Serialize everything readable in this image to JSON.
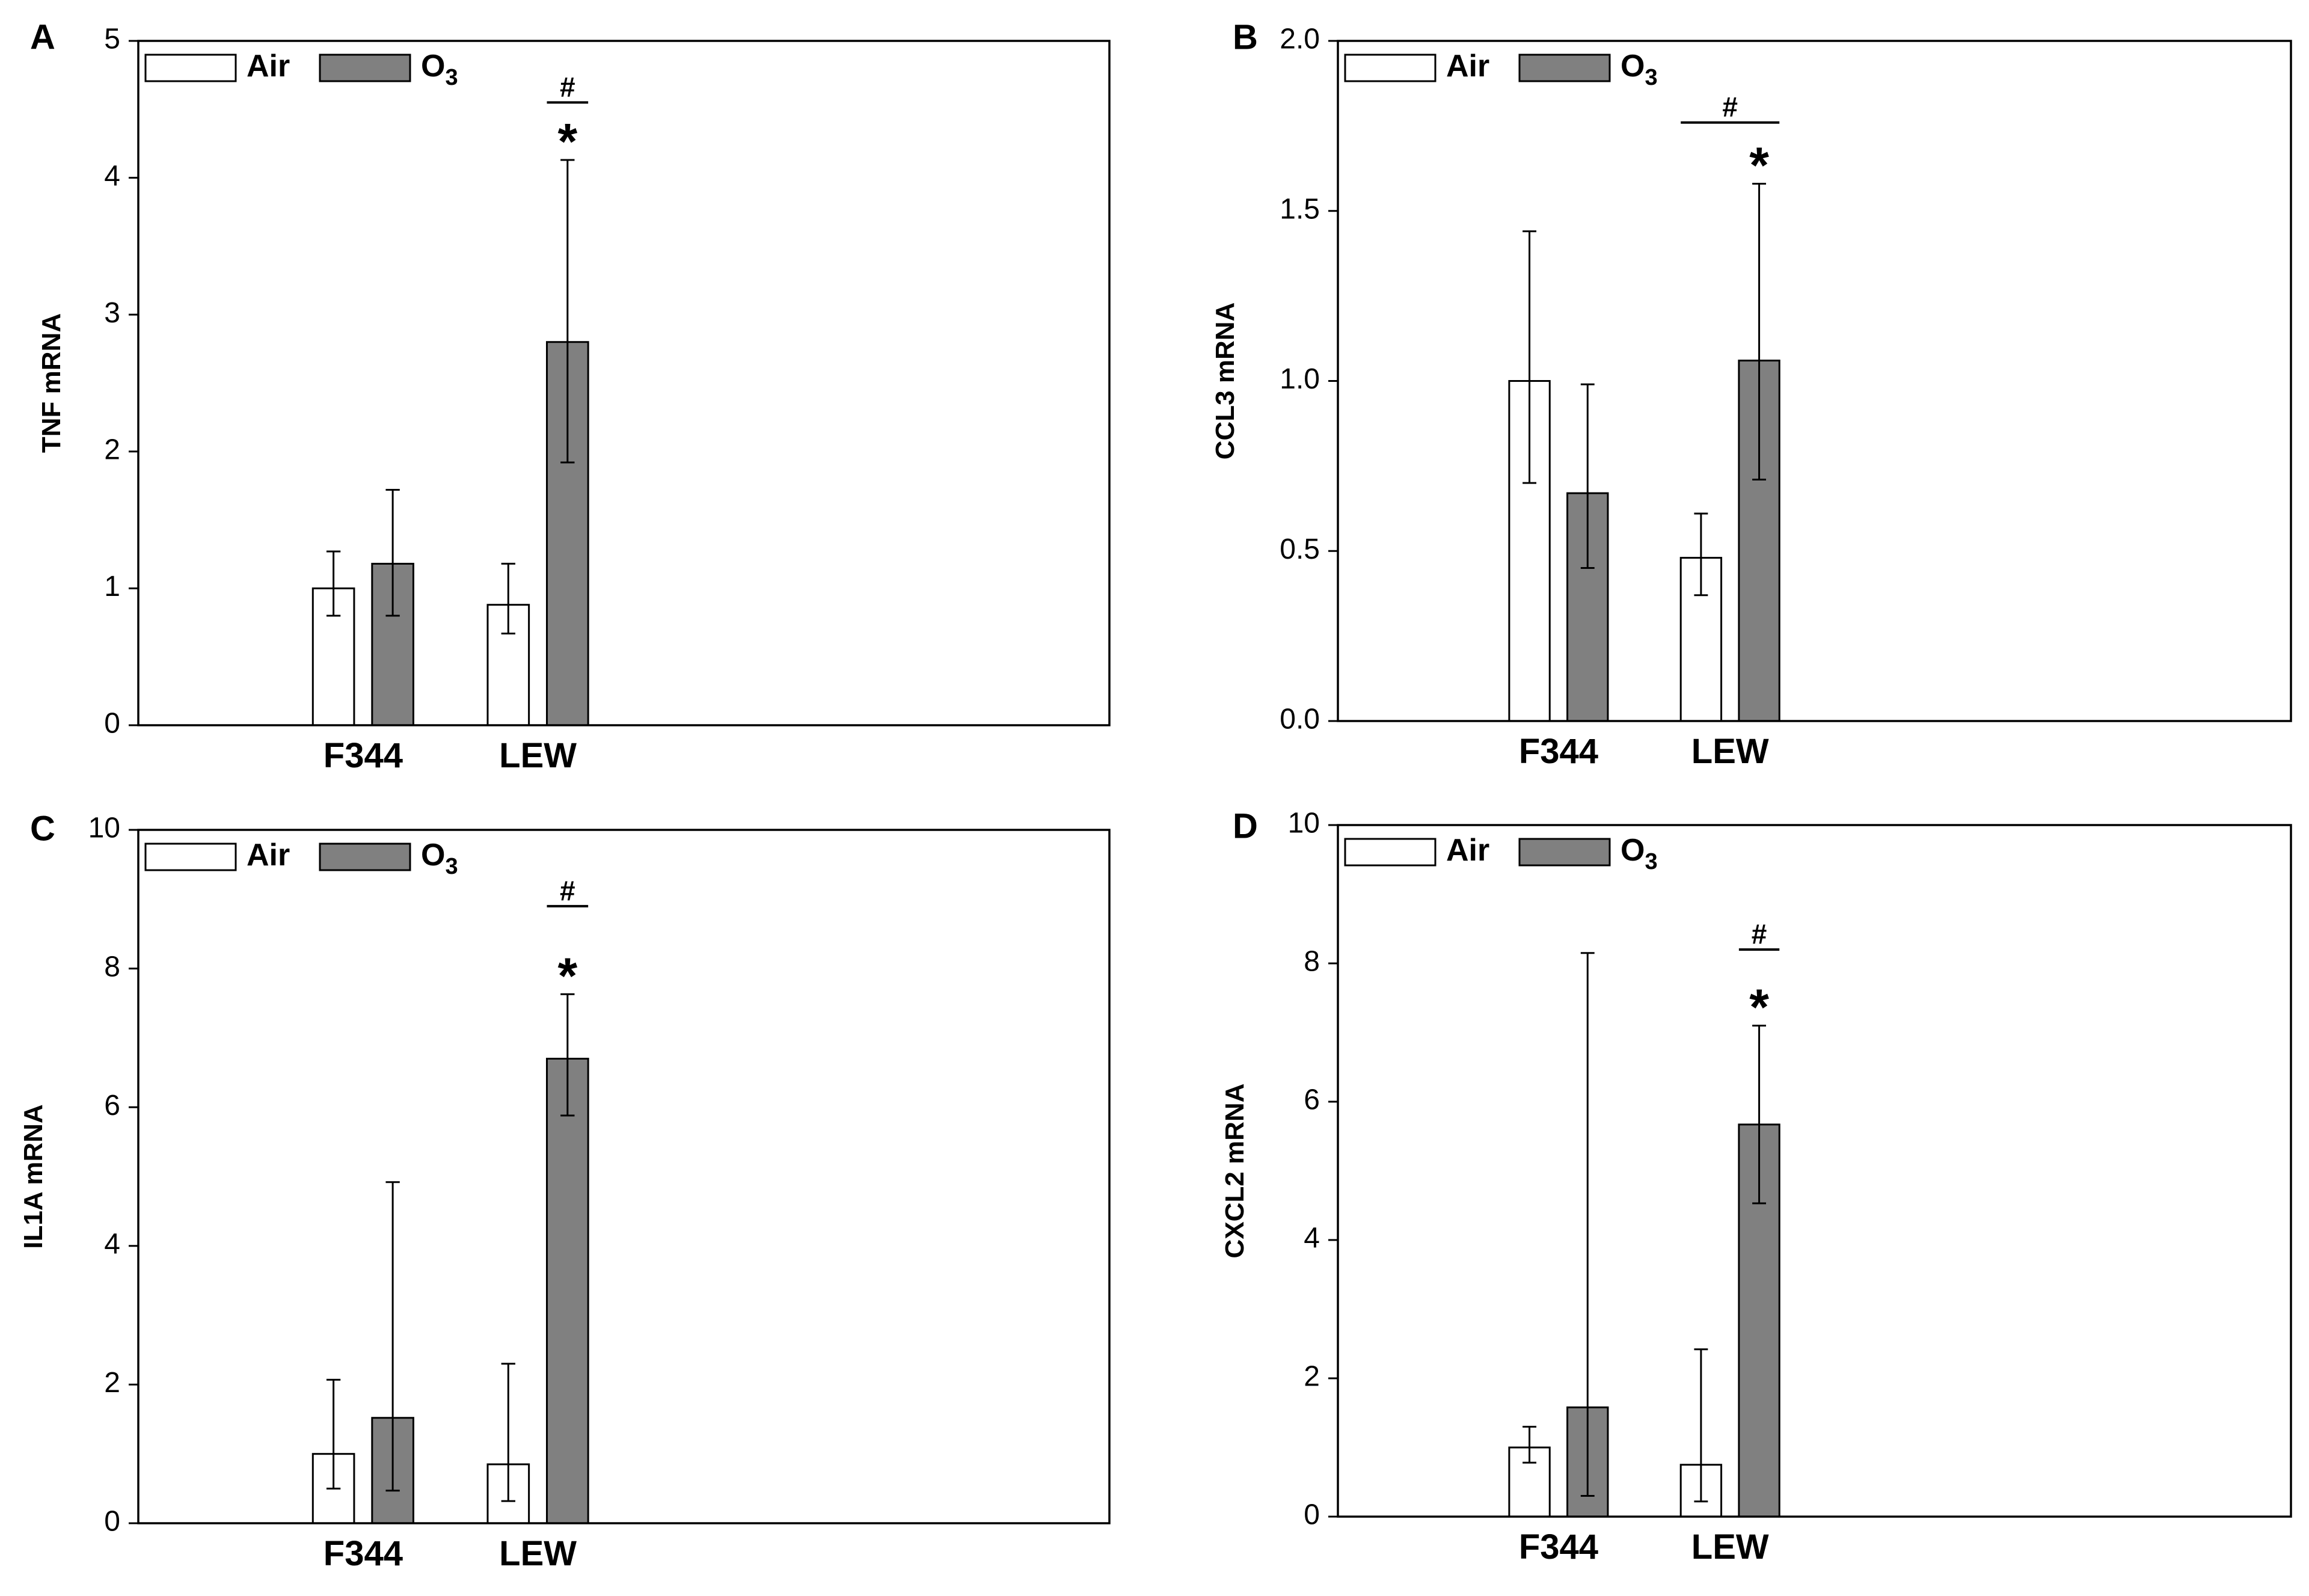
{
  "chart_data": [
    {
      "panel": "A",
      "type": "bar",
      "ylabel": "TNF mRNA",
      "ylim": [
        0,
        5
      ],
      "yticks": [
        "0",
        "1",
        "2",
        "3",
        "4",
        "5"
      ],
      "categories": [
        "F344",
        "LEW"
      ],
      "legend": {
        "position": "top-left",
        "entries": [
          {
            "label": "Air",
            "subscript": "",
            "color": "#ffffff"
          },
          {
            "label": "O",
            "subscript": "3",
            "color": "#808080"
          }
        ]
      },
      "series": [
        {
          "name": "Air",
          "color": "#ffffff",
          "values": [
            1.0,
            0.88
          ],
          "err_low": [
            0.8,
            0.67
          ],
          "err_high": [
            1.27,
            1.18
          ]
        },
        {
          "name": "O3",
          "color": "#808080",
          "values": [
            1.18,
            2.8
          ],
          "err_low": [
            0.8,
            1.92
          ],
          "err_high": [
            1.72,
            4.13
          ]
        }
      ],
      "annotations": [
        {
          "text": "#",
          "bracket": [
            [
              1,
              1
            ],
            [
              1,
              1
            ]
          ],
          "level": 4.55
        },
        {
          "text": "*",
          "category": 1,
          "series": 1,
          "level": 4.13
        }
      ]
    },
    {
      "panel": "B",
      "type": "bar",
      "ylabel": "CCL3 mRNA",
      "ylim": [
        0,
        2
      ],
      "yticks": [
        "0.0",
        "0.5",
        "1.0",
        "1.5",
        "2.0"
      ],
      "categories": [
        "F344",
        "LEW"
      ],
      "legend": {
        "position": "top-left",
        "entries": [
          {
            "label": "Air",
            "subscript": "",
            "color": "#ffffff"
          },
          {
            "label": "O",
            "subscript": "3",
            "color": "#808080"
          }
        ]
      },
      "series": [
        {
          "name": "Air",
          "color": "#ffffff",
          "values": [
            1.0,
            0.48
          ],
          "err_low": [
            0.7,
            0.37
          ],
          "err_high": [
            1.44,
            0.61
          ]
        },
        {
          "name": "O3",
          "color": "#808080",
          "values": [
            0.67,
            1.06
          ],
          "err_low": [
            0.45,
            0.71
          ],
          "err_high": [
            0.99,
            1.58
          ]
        }
      ],
      "annotations": [
        {
          "text": "#",
          "bracket": [
            [
              1,
              0
            ],
            [
              1,
              1
            ]
          ],
          "level": 1.76
        },
        {
          "text": "*",
          "category": 1,
          "series": 1,
          "level": 1.58
        }
      ]
    },
    {
      "panel": "C",
      "type": "bar",
      "ylabel": "IL1A mRNA",
      "ylim": [
        0,
        10
      ],
      "yticks": [
        "0",
        "2",
        "4",
        "6",
        "8",
        "10"
      ],
      "categories": [
        "F344",
        "LEW"
      ],
      "legend": {
        "position": "top-left",
        "entries": [
          {
            "label": "Air",
            "subscript": "",
            "color": "#ffffff"
          },
          {
            "label": "O",
            "subscript": "3",
            "color": "#808080"
          }
        ]
      },
      "series": [
        {
          "name": "Air",
          "color": "#ffffff",
          "values": [
            1.0,
            0.85
          ],
          "err_low": [
            0.5,
            0.32
          ],
          "err_high": [
            2.07,
            2.3
          ]
        },
        {
          "name": "O3",
          "color": "#808080",
          "values": [
            1.52,
            6.7
          ],
          "err_low": [
            0.47,
            5.88
          ],
          "err_high": [
            4.92,
            7.63
          ]
        }
      ],
      "annotations": [
        {
          "text": "#",
          "bracket": [
            [
              1,
              1
            ],
            [
              1,
              1
            ]
          ],
          "level": 8.9
        },
        {
          "text": "*",
          "category": 1,
          "series": 1,
          "level": 7.63
        }
      ]
    },
    {
      "panel": "D",
      "type": "bar",
      "ylabel": "CXCL2 mRNA",
      "ylim": [
        0,
        10
      ],
      "yticks": [
        "0",
        "2",
        "4",
        "6",
        "8",
        "10"
      ],
      "categories": [
        "F344",
        "LEW"
      ],
      "legend": {
        "position": "top-left",
        "entries": [
          {
            "label": "Air",
            "subscript": "",
            "color": "#ffffff"
          },
          {
            "label": "O",
            "subscript": "3",
            "color": "#808080"
          }
        ]
      },
      "series": [
        {
          "name": "Air",
          "color": "#ffffff",
          "values": [
            1.0,
            0.75
          ],
          "err_low": [
            0.78,
            0.22
          ],
          "err_high": [
            1.3,
            2.42
          ]
        },
        {
          "name": "O3",
          "color": "#808080",
          "values": [
            1.58,
            5.67
          ],
          "err_low": [
            0.3,
            4.53
          ],
          "err_high": [
            8.15,
            7.1
          ]
        }
      ],
      "annotations": [
        {
          "text": "#",
          "bracket": [
            [
              1,
              1
            ],
            [
              1,
              1
            ]
          ],
          "level": 8.2
        },
        {
          "text": "*",
          "category": 1,
          "series": 1,
          "level": 7.1
        }
      ]
    }
  ]
}
